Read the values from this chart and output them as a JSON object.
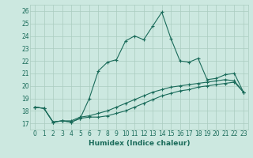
{
  "xlabel": "Humidex (Indice chaleur)",
  "background_color": "#cce8e0",
  "line_color": "#1a6b5a",
  "xlim": [
    -0.5,
    23.5
  ],
  "ylim": [
    16.5,
    26.5
  ],
  "xticks": [
    0,
    1,
    2,
    3,
    4,
    5,
    6,
    7,
    8,
    9,
    10,
    11,
    12,
    13,
    14,
    15,
    16,
    17,
    18,
    19,
    20,
    21,
    22,
    23
  ],
  "yticks": [
    17,
    18,
    19,
    20,
    21,
    22,
    23,
    24,
    25,
    26
  ],
  "line1_x": [
    0,
    1,
    2,
    3,
    4,
    5,
    6,
    7,
    8,
    9,
    10,
    11,
    12,
    13,
    14,
    15,
    16,
    17,
    18,
    19,
    20,
    21,
    22,
    23
  ],
  "line1_y": [
    18.3,
    18.2,
    17.1,
    17.2,
    17.1,
    17.4,
    19.0,
    21.2,
    21.9,
    22.1,
    23.6,
    24.0,
    23.7,
    24.8,
    25.9,
    23.8,
    22.0,
    21.9,
    22.2,
    20.5,
    20.6,
    20.9,
    21.0,
    19.5
  ],
  "line2_x": [
    0,
    1,
    2,
    3,
    4,
    5,
    6,
    7,
    8,
    9,
    10,
    11,
    12,
    13,
    14,
    15,
    16,
    17,
    18,
    19,
    20,
    21,
    22,
    23
  ],
  "line2_y": [
    18.3,
    18.2,
    17.1,
    17.2,
    17.1,
    17.4,
    17.5,
    17.5,
    17.6,
    17.8,
    18.0,
    18.3,
    18.6,
    18.9,
    19.2,
    19.4,
    19.6,
    19.7,
    19.9,
    20.0,
    20.1,
    20.2,
    20.3,
    19.5
  ],
  "line3_x": [
    0,
    1,
    2,
    3,
    4,
    5,
    6,
    7,
    8,
    9,
    10,
    11,
    12,
    13,
    14,
    15,
    16,
    17,
    18,
    19,
    20,
    21,
    22,
    23
  ],
  "line3_y": [
    18.3,
    18.2,
    17.1,
    17.2,
    17.2,
    17.5,
    17.6,
    17.8,
    18.0,
    18.3,
    18.6,
    18.9,
    19.2,
    19.5,
    19.7,
    19.9,
    20.0,
    20.1,
    20.2,
    20.3,
    20.4,
    20.5,
    20.4,
    19.5
  ],
  "grid_color": "#aaccc0",
  "marker": "+",
  "tick_fontsize": 5.5,
  "xlabel_fontsize": 6.5
}
